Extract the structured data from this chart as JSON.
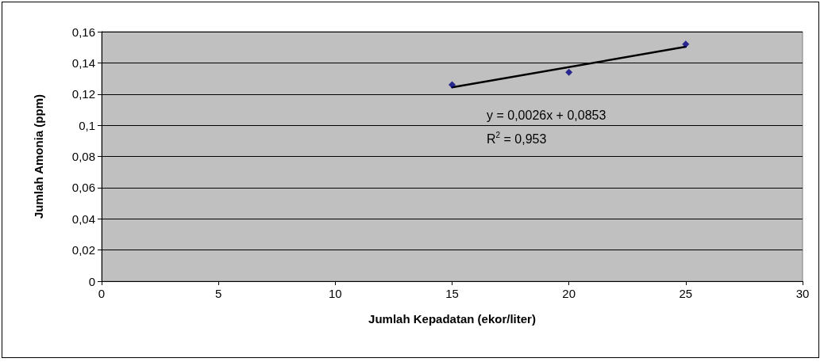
{
  "chart_data": {
    "type": "scatter",
    "xlabel": "Jumlah Kepadatan (ekor/liter)",
    "ylabel": "Jumlah Amonia (ppm)",
    "x": [
      15,
      20,
      25
    ],
    "series": [
      {
        "color": "#000080",
        "values": [
          0.126,
          0.134,
          0.152
        ],
        "marker": "diamond"
      },
      {
        "type": "line",
        "color": "#000000",
        "x": [
          15,
          25
        ],
        "values": [
          0.1243,
          0.1503
        ],
        "marker": "none"
      }
    ],
    "xlim": [
      0,
      30
    ],
    "xticks": [
      0,
      5,
      10,
      15,
      20,
      25,
      30
    ],
    "ylim": [
      0,
      0.16
    ],
    "yticks": [
      {
        "value": 0,
        "label": "0"
      },
      {
        "value": 0.02,
        "label": "0,02"
      },
      {
        "value": 0.04,
        "label": "0,04"
      },
      {
        "value": 0.06,
        "label": "0,06"
      },
      {
        "value": 0.08,
        "label": "0,08"
      },
      {
        "value": 0.1,
        "label": "0,1"
      },
      {
        "value": 0.12,
        "label": "0,12"
      },
      {
        "value": 0.14,
        "label": "0,14"
      },
      {
        "value": 0.16,
        "label": "0,16"
      }
    ],
    "grid": "y",
    "annotations": [
      "y = 0,0026x + 0,0853",
      "R$^{2}$ = 0,953"
    ]
  }
}
